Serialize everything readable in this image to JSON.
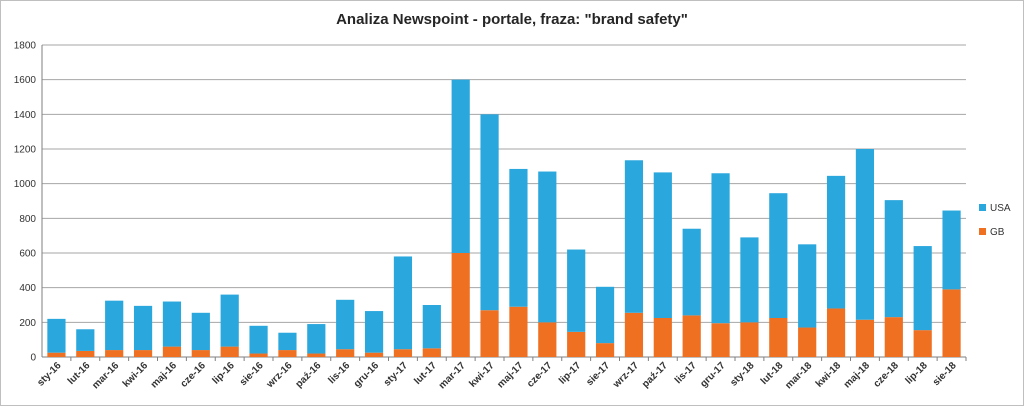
{
  "chart_data": {
    "type": "bar",
    "stacked": true,
    "title": "Analiza Newspoint - portale, fraza: \"brand safety\"",
    "categories": [
      "sty-16",
      "lut-16",
      "mar-16",
      "kwi-16",
      "maj-16",
      "cze-16",
      "lip-16",
      "sie-16",
      "wrz-16",
      "paź-16",
      "lis-16",
      "gru-16",
      "sty-17",
      "lut-17",
      "mar-17",
      "kwi-17",
      "maj-17",
      "cze-17",
      "lip-17",
      "sie-17",
      "wrz-17",
      "paź-17",
      "lis-17",
      "gru-17",
      "sty-18",
      "lut-18",
      "mar-18",
      "kwi-18",
      "maj-18",
      "cze-18",
      "lip-18",
      "sie-18"
    ],
    "series": [
      {
        "name": "GB",
        "color": "#f07022",
        "values": [
          25,
          35,
          40,
          40,
          60,
          40,
          60,
          20,
          40,
          20,
          45,
          25,
          45,
          50,
          600,
          270,
          290,
          200,
          145,
          80,
          255,
          225,
          240,
          195,
          200,
          225,
          170,
          280,
          215,
          230,
          155,
          390
        ]
      },
      {
        "name": "USA",
        "color": "#2aa7dd",
        "values": [
          195,
          125,
          285,
          255,
          260,
          215,
          300,
          160,
          100,
          170,
          285,
          240,
          535,
          250,
          1000,
          1130,
          795,
          870,
          475,
          325,
          880,
          840,
          500,
          865,
          490,
          720,
          480,
          765,
          985,
          675,
          485,
          455
        ]
      }
    ],
    "ylim": [
      0,
      1800
    ],
    "yticks": [
      "0",
      "200",
      "400",
      "600",
      "800",
      "1000",
      "1200",
      "1400",
      "1600",
      "1800"
    ],
    "grid": true,
    "legend": {
      "position": "right",
      "entries": [
        "USA",
        "GB"
      ]
    }
  }
}
